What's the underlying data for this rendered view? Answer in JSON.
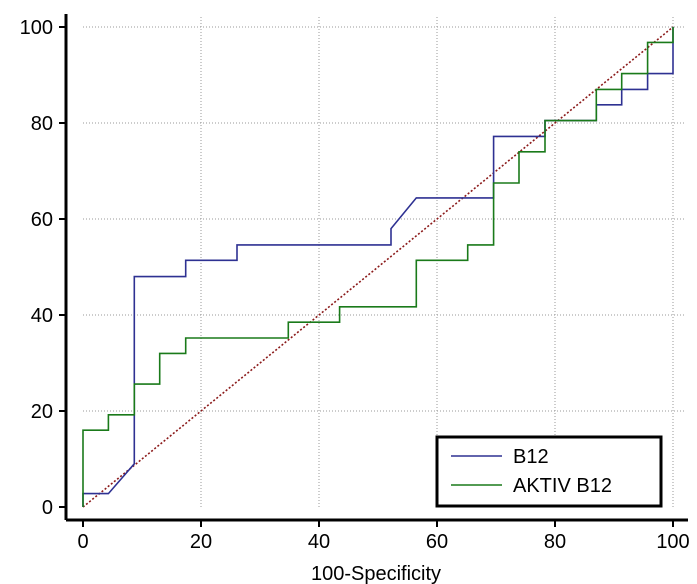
{
  "chart_data": {
    "type": "line",
    "title": "",
    "xlabel": "100-Specificity",
    "ylabel": "",
    "xlim": [
      0,
      100
    ],
    "ylim": [
      0,
      100
    ],
    "xticks": [
      0,
      20,
      40,
      60,
      80,
      100
    ],
    "yticks": [
      0,
      20,
      40,
      60,
      80,
      100
    ],
    "grid": true,
    "legend_position": "bottom-right",
    "series": [
      {
        "name": "B12",
        "color": "#2e3192",
        "step": true,
        "x": [
          0,
          0,
          4.3,
          8.7,
          8.7,
          17.4,
          17.4,
          26.1,
          26.1,
          52.2,
          52.2,
          56.5,
          69.6,
          69.6,
          78.3,
          78.3,
          87,
          87,
          91.3,
          91.3,
          95.7,
          95.7,
          100,
          100
        ],
        "y": [
          0,
          2.8,
          2.8,
          9,
          48,
          48,
          51.4,
          51.4,
          54.6,
          54.6,
          58,
          64.4,
          64.4,
          77.2,
          77.2,
          80.5,
          80.5,
          83.8,
          83.8,
          87,
          87,
          90.3,
          90.3,
          100
        ]
      },
      {
        "name": "AKTIV B12",
        "color": "#1a7a1a",
        "step": true,
        "x": [
          0,
          0,
          4.3,
          4.3,
          8.7,
          8.7,
          13,
          13,
          17.4,
          17.4,
          34.8,
          34.8,
          43.5,
          43.5,
          56.5,
          56.5,
          65.2,
          65.2,
          69.6,
          69.6,
          73.9,
          73.9,
          78.3,
          78.3,
          87,
          87,
          91.3,
          91.3,
          95.7,
          95.7,
          100,
          100
        ],
        "y": [
          0,
          16,
          16,
          19.2,
          19.2,
          25.6,
          25.6,
          32,
          32,
          35.2,
          35.2,
          38.5,
          38.5,
          41.7,
          41.7,
          51.4,
          51.4,
          54.6,
          54.6,
          67.5,
          67.5,
          74,
          74,
          80.5,
          80.5,
          87,
          87,
          90.3,
          90.3,
          96.8,
          96.8,
          100
        ]
      }
    ],
    "reference_line": {
      "x": [
        0,
        100
      ],
      "y": [
        0,
        100
      ],
      "color": "#8b1a1a",
      "style": "dotted"
    }
  }
}
